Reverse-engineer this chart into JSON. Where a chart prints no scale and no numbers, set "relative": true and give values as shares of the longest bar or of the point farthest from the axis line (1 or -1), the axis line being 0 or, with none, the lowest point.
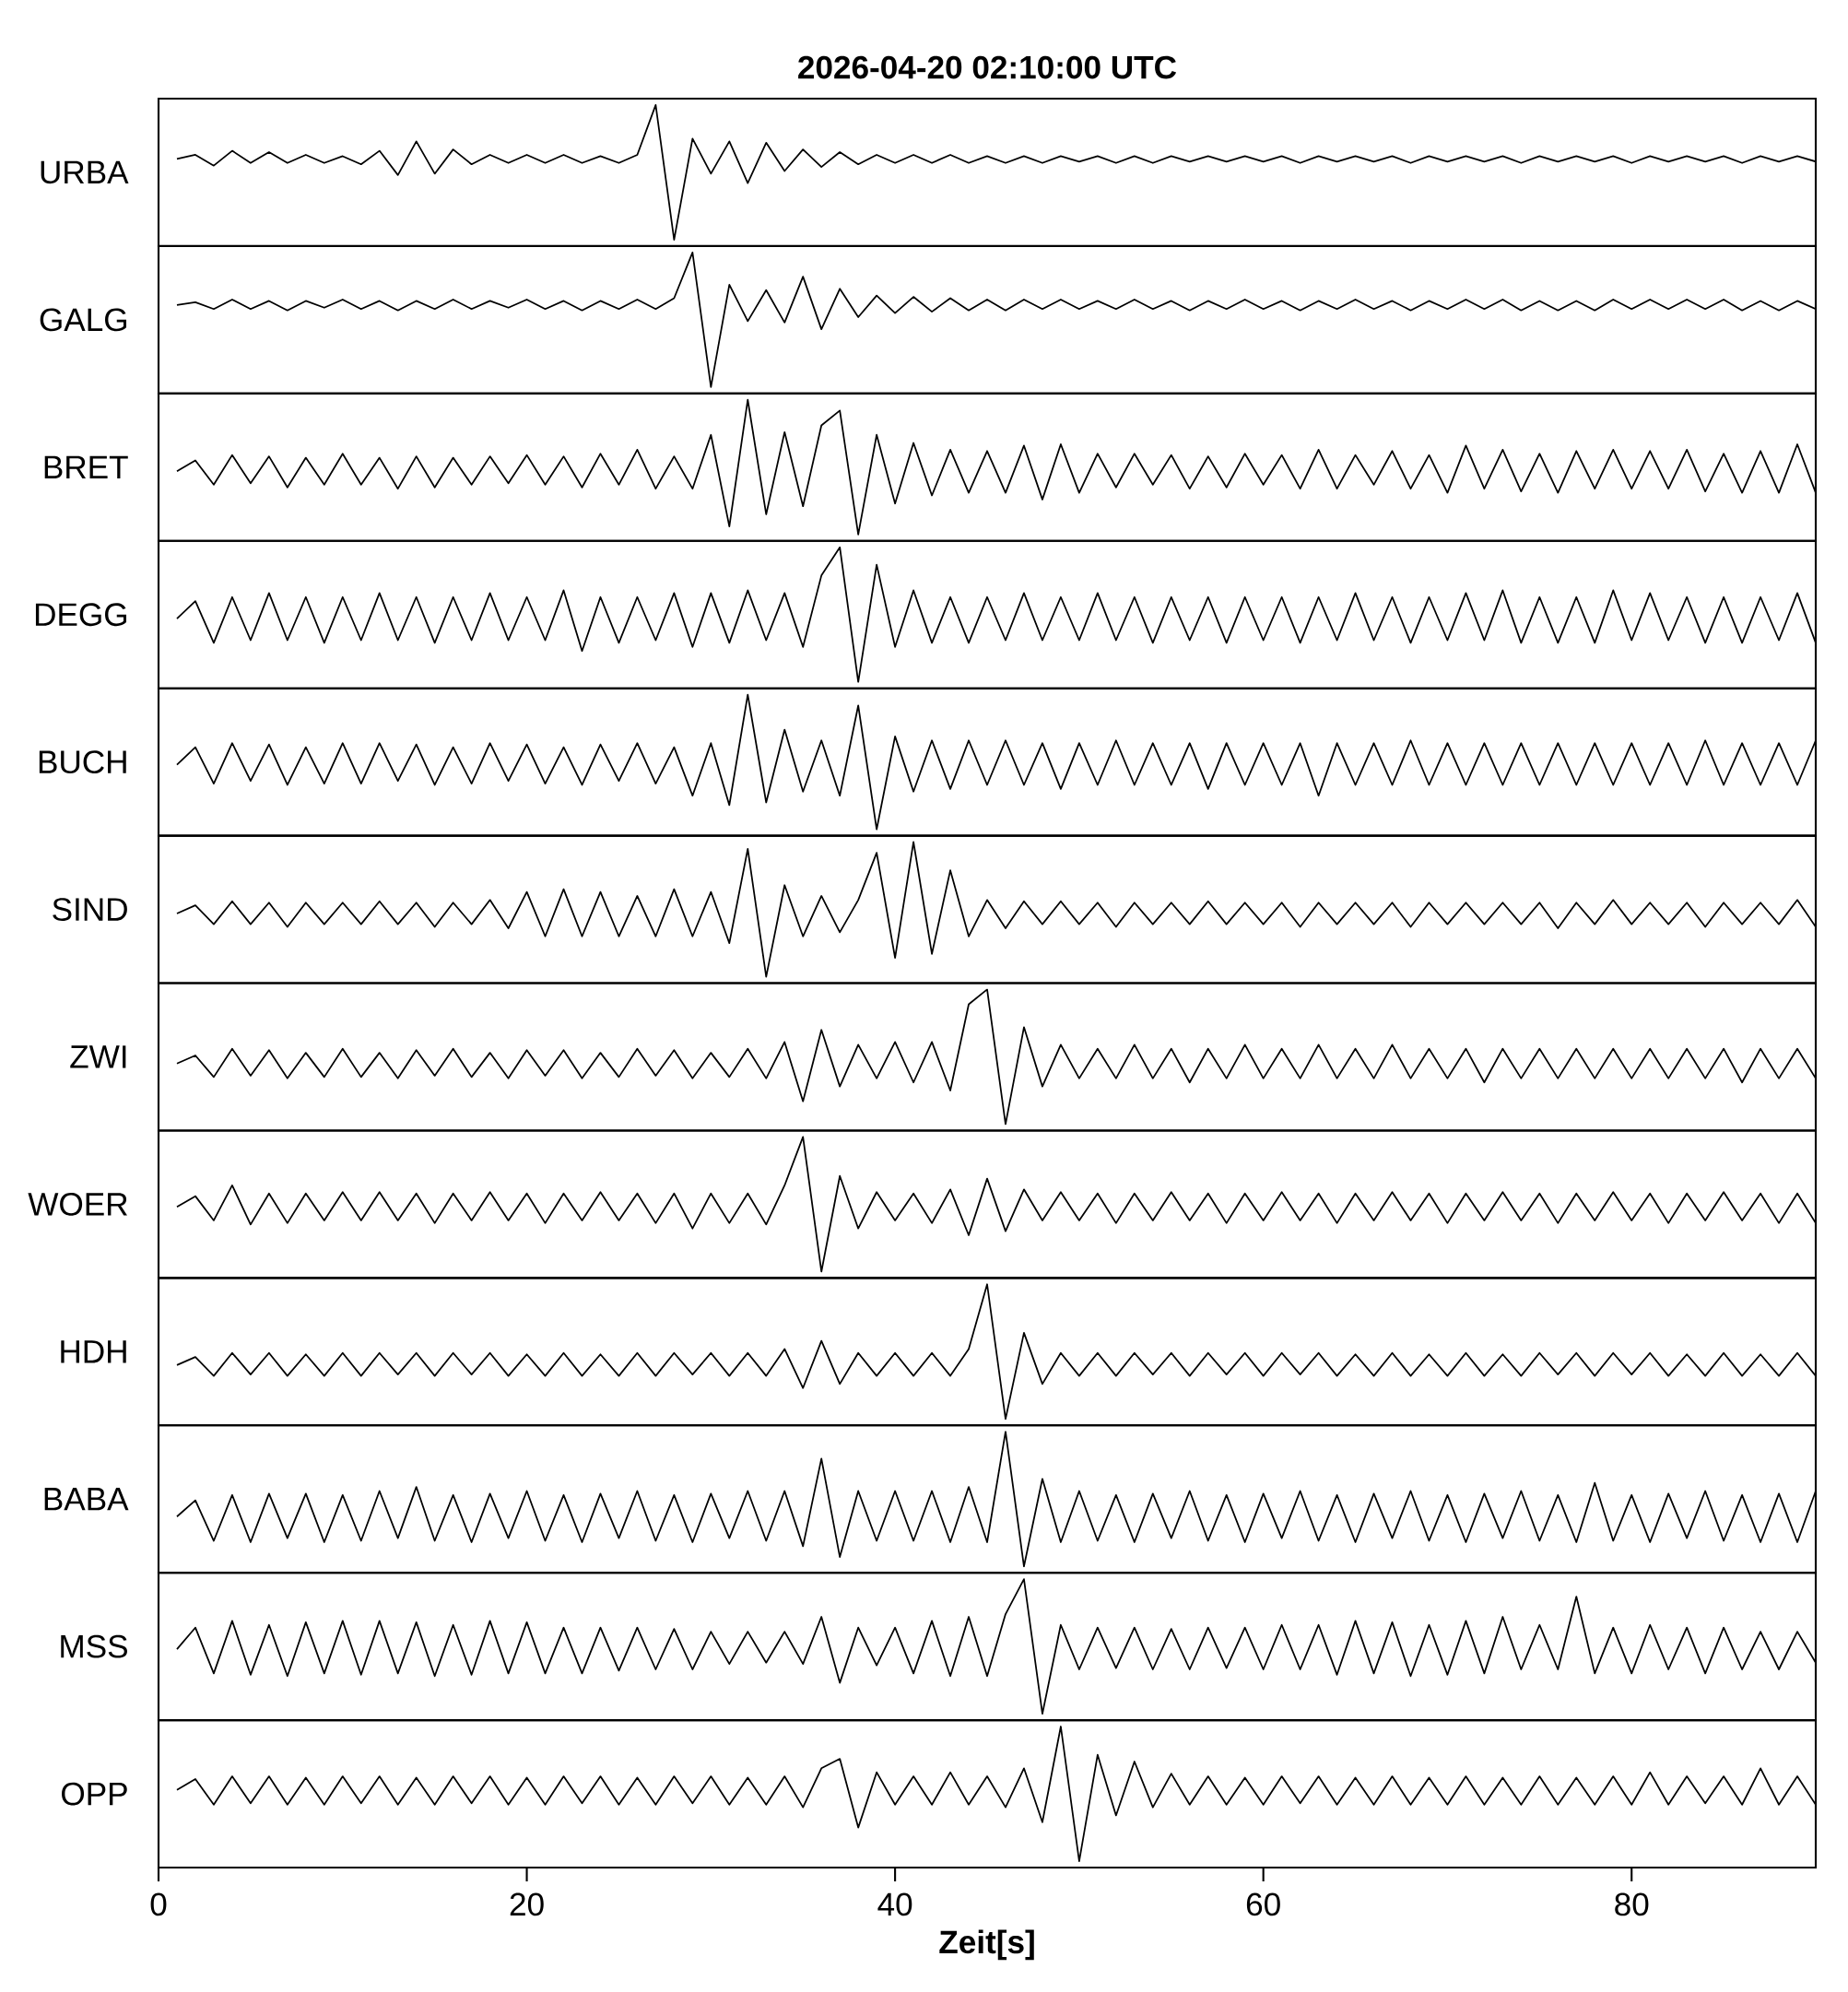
{
  "chart_data": [
    {
      "type": "line",
      "relative": true,
      "title": "2026-04-20  02:10:00 UTC",
      "ylabel": "URBA",
      "color": "#000000",
      "xlim": [
        0,
        90
      ],
      "tick_labels": false,
      "x": [
        1,
        2,
        3,
        4,
        5,
        6,
        7,
        8,
        9,
        10,
        11,
        12,
        13,
        14,
        15,
        16,
        17,
        18,
        19,
        20,
        21,
        22,
        23,
        24,
        25,
        26,
        27,
        28,
        29,
        30,
        31,
        32,
        33,
        34,
        35,
        36,
        37,
        38,
        39,
        40,
        41,
        42,
        43,
        44,
        45,
        46,
        47,
        48,
        49,
        50,
        51,
        52,
        53,
        54,
        55,
        56,
        57,
        58,
        59,
        60,
        61,
        62,
        63,
        64,
        65,
        66,
        67,
        68,
        69,
        70,
        71,
        72,
        73,
        74,
        75,
        76,
        77,
        78,
        79,
        80,
        81,
        82,
        83,
        84,
        85,
        86,
        87,
        88,
        89,
        90
      ],
      "values": [
        0.6,
        0.63,
        0.55,
        0.66,
        0.57,
        0.65,
        0.57,
        0.63,
        0.57,
        0.62,
        0.56,
        0.66,
        0.48,
        0.73,
        0.49,
        0.67,
        0.56,
        0.63,
        0.57,
        0.63,
        0.57,
        0.63,
        0.57,
        0.62,
        0.57,
        0.63,
        1,
        0,
        0.75,
        0.49,
        0.73,
        0.42,
        0.72,
        0.51,
        0.67,
        0.54,
        0.65,
        0.56,
        0.63,
        0.57,
        0.63,
        0.57,
        0.63,
        0.57,
        0.62,
        0.57,
        0.62,
        0.57,
        0.62,
        0.58,
        0.62,
        0.57,
        0.62,
        0.57,
        0.62,
        0.58,
        0.62,
        0.58,
        0.62,
        0.58,
        0.62,
        0.57,
        0.62,
        0.58,
        0.62,
        0.58,
        0.62,
        0.57,
        0.62,
        0.58,
        0.62,
        0.58,
        0.62,
        0.57,
        0.62,
        0.58,
        0.62,
        0.58,
        0.62,
        0.57,
        0.62,
        0.58,
        0.62,
        0.58,
        0.62,
        0.57,
        0.62,
        0.58,
        0.62,
        0.58
      ]
    },
    {
      "type": "line",
      "relative": true,
      "ylabel": "GALG",
      "color": "#000000",
      "xlim": [
        0,
        90
      ],
      "tick_labels": false,
      "x": [
        1,
        2,
        3,
        4,
        5,
        6,
        7,
        8,
        9,
        10,
        11,
        12,
        13,
        14,
        15,
        16,
        17,
        18,
        19,
        20,
        21,
        22,
        23,
        24,
        25,
        26,
        27,
        28,
        29,
        30,
        31,
        32,
        33,
        34,
        35,
        36,
        37,
        38,
        39,
        40,
        41,
        42,
        43,
        44,
        45,
        46,
        47,
        48,
        49,
        50,
        51,
        52,
        53,
        54,
        55,
        56,
        57,
        58,
        59,
        60,
        61,
        62,
        63,
        64,
        65,
        66,
        67,
        68,
        69,
        70,
        71,
        72,
        73,
        74,
        75,
        76,
        77,
        78,
        79,
        80,
        81,
        82,
        83,
        84,
        85,
        86,
        87,
        88,
        89,
        90
      ],
      "values": [
        0.61,
        0.63,
        0.58,
        0.65,
        0.58,
        0.64,
        0.57,
        0.64,
        0.59,
        0.65,
        0.58,
        0.64,
        0.57,
        0.64,
        0.58,
        0.65,
        0.58,
        0.64,
        0.59,
        0.65,
        0.58,
        0.64,
        0.57,
        0.64,
        0.58,
        0.65,
        0.58,
        0.66,
        1,
        0,
        0.76,
        0.49,
        0.72,
        0.48,
        0.82,
        0.43,
        0.73,
        0.52,
        0.68,
        0.55,
        0.67,
        0.56,
        0.66,
        0.57,
        0.65,
        0.57,
        0.65,
        0.58,
        0.65,
        0.58,
        0.64,
        0.58,
        0.65,
        0.58,
        0.64,
        0.57,
        0.64,
        0.58,
        0.65,
        0.58,
        0.64,
        0.57,
        0.64,
        0.58,
        0.65,
        0.58,
        0.64,
        0.57,
        0.64,
        0.58,
        0.65,
        0.58,
        0.65,
        0.57,
        0.64,
        0.57,
        0.64,
        0.57,
        0.65,
        0.58,
        0.65,
        0.58,
        0.65,
        0.58,
        0.65,
        0.57,
        0.64,
        0.57,
        0.64,
        0.58
      ]
    },
    {
      "type": "line",
      "relative": true,
      "ylabel": "BRET",
      "color": "#000000",
      "xlim": [
        0,
        90
      ],
      "tick_labels": false,
      "x": [
        1,
        2,
        3,
        4,
        5,
        6,
        7,
        8,
        9,
        10,
        11,
        12,
        13,
        14,
        15,
        16,
        17,
        18,
        19,
        20,
        21,
        22,
        23,
        24,
        25,
        26,
        27,
        28,
        29,
        30,
        31,
        32,
        33,
        34,
        35,
        36,
        37,
        38,
        39,
        40,
        41,
        42,
        43,
        44,
        45,
        46,
        47,
        48,
        49,
        50,
        51,
        52,
        53,
        54,
        55,
        56,
        57,
        58,
        59,
        60,
        61,
        62,
        63,
        64,
        65,
        66,
        67,
        68,
        69,
        70,
        71,
        72,
        73,
        74,
        75,
        76,
        77,
        78,
        79,
        80,
        81,
        82,
        83,
        84,
        85,
        86,
        87,
        88,
        89,
        90
      ],
      "values": [
        0.47,
        0.55,
        0.37,
        0.59,
        0.38,
        0.58,
        0.35,
        0.57,
        0.37,
        0.6,
        0.37,
        0.57,
        0.34,
        0.58,
        0.35,
        0.57,
        0.37,
        0.58,
        0.38,
        0.59,
        0.37,
        0.58,
        0.35,
        0.6,
        0.37,
        0.63,
        0.34,
        0.58,
        0.34,
        0.74,
        0.06,
        1,
        0.15,
        0.76,
        0.21,
        0.81,
        0.92,
        0,
        0.74,
        0.23,
        0.68,
        0.29,
        0.63,
        0.31,
        0.62,
        0.31,
        0.66,
        0.26,
        0.67,
        0.31,
        0.6,
        0.35,
        0.6,
        0.37,
        0.59,
        0.34,
        0.58,
        0.35,
        0.6,
        0.37,
        0.59,
        0.34,
        0.63,
        0.34,
        0.59,
        0.37,
        0.62,
        0.34,
        0.59,
        0.31,
        0.66,
        0.34,
        0.63,
        0.32,
        0.6,
        0.31,
        0.62,
        0.34,
        0.63,
        0.34,
        0.62,
        0.34,
        0.63,
        0.32,
        0.6,
        0.31,
        0.62,
        0.31,
        0.67,
        0.31
      ]
    },
    {
      "type": "line",
      "relative": true,
      "ylabel": "DEGG",
      "color": "#000000",
      "xlim": [
        0,
        90
      ],
      "tick_labels": false,
      "x": [
        1,
        2,
        3,
        4,
        5,
        6,
        7,
        8,
        9,
        10,
        11,
        12,
        13,
        14,
        15,
        16,
        17,
        18,
        19,
        20,
        21,
        22,
        23,
        24,
        25,
        26,
        27,
        28,
        29,
        30,
        31,
        32,
        33,
        34,
        35,
        36,
        37,
        38,
        39,
        40,
        41,
        42,
        43,
        44,
        45,
        46,
        47,
        48,
        49,
        50,
        51,
        52,
        53,
        54,
        55,
        56,
        57,
        58,
        59,
        60,
        61,
        62,
        63,
        64,
        65,
        66,
        67,
        68,
        69,
        70,
        71,
        72,
        73,
        74,
        75,
        76,
        77,
        78,
        79,
        80,
        81,
        82,
        83,
        84,
        85,
        86,
        87,
        88,
        89,
        90
      ],
      "values": [
        0.47,
        0.6,
        0.29,
        0.63,
        0.31,
        0.66,
        0.31,
        0.63,
        0.29,
        0.63,
        0.31,
        0.66,
        0.31,
        0.63,
        0.29,
        0.63,
        0.31,
        0.66,
        0.31,
        0.63,
        0.31,
        0.68,
        0.23,
        0.63,
        0.29,
        0.63,
        0.31,
        0.66,
        0.26,
        0.66,
        0.29,
        0.68,
        0.31,
        0.66,
        0.26,
        0.79,
        1,
        0,
        0.87,
        0.26,
        0.68,
        0.29,
        0.63,
        0.29,
        0.63,
        0.31,
        0.66,
        0.31,
        0.63,
        0.31,
        0.66,
        0.31,
        0.63,
        0.29,
        0.63,
        0.31,
        0.63,
        0.29,
        0.63,
        0.31,
        0.63,
        0.29,
        0.63,
        0.31,
        0.66,
        0.31,
        0.63,
        0.29,
        0.63,
        0.31,
        0.66,
        0.31,
        0.68,
        0.29,
        0.63,
        0.29,
        0.63,
        0.29,
        0.68,
        0.31,
        0.66,
        0.31,
        0.63,
        0.29,
        0.63,
        0.29,
        0.63,
        0.31,
        0.66,
        0.29
      ]
    },
    {
      "type": "line",
      "relative": true,
      "ylabel": "BUCH",
      "color": "#000000",
      "xlim": [
        0,
        90
      ],
      "tick_labels": false,
      "x": [
        1,
        2,
        3,
        4,
        5,
        6,
        7,
        8,
        9,
        10,
        11,
        12,
        13,
        14,
        15,
        16,
        17,
        18,
        19,
        20,
        21,
        22,
        23,
        24,
        25,
        26,
        27,
        28,
        29,
        30,
        31,
        32,
        33,
        34,
        35,
        36,
        37,
        38,
        39,
        40,
        41,
        42,
        43,
        44,
        45,
        46,
        47,
        48,
        49,
        50,
        51,
        52,
        53,
        54,
        55,
        56,
        57,
        58,
        59,
        60,
        61,
        62,
        63,
        64,
        65,
        66,
        67,
        68,
        69,
        70,
        71,
        72,
        73,
        74,
        75,
        76,
        77,
        78,
        79,
        80,
        81,
        82,
        83,
        84,
        85,
        86,
        87,
        88,
        89,
        90
      ],
      "values": [
        0.48,
        0.61,
        0.34,
        0.64,
        0.36,
        0.63,
        0.33,
        0.61,
        0.34,
        0.64,
        0.34,
        0.64,
        0.36,
        0.63,
        0.33,
        0.61,
        0.34,
        0.64,
        0.36,
        0.63,
        0.34,
        0.61,
        0.33,
        0.63,
        0.36,
        0.64,
        0.34,
        0.61,
        0.25,
        0.64,
        0.18,
        1,
        0.2,
        0.74,
        0.28,
        0.66,
        0.25,
        0.92,
        0,
        0.69,
        0.28,
        0.66,
        0.3,
        0.66,
        0.33,
        0.66,
        0.33,
        0.64,
        0.3,
        0.64,
        0.33,
        0.66,
        0.33,
        0.64,
        0.33,
        0.64,
        0.3,
        0.64,
        0.33,
        0.64,
        0.33,
        0.64,
        0.25,
        0.64,
        0.33,
        0.64,
        0.33,
        0.66,
        0.33,
        0.64,
        0.33,
        0.64,
        0.33,
        0.64,
        0.33,
        0.64,
        0.33,
        0.64,
        0.33,
        0.64,
        0.33,
        0.64,
        0.33,
        0.66,
        0.33,
        0.64,
        0.33,
        0.64,
        0.33,
        0.66
      ]
    },
    {
      "type": "line",
      "relative": true,
      "ylabel": "SIND",
      "color": "#000000",
      "xlim": [
        0,
        90
      ],
      "tick_labels": false,
      "x": [
        1,
        2,
        3,
        4,
        5,
        6,
        7,
        8,
        9,
        10,
        11,
        12,
        13,
        14,
        15,
        16,
        17,
        18,
        19,
        20,
        21,
        22,
        23,
        24,
        25,
        26,
        27,
        28,
        29,
        30,
        31,
        32,
        33,
        34,
        35,
        36,
        37,
        38,
        39,
        40,
        41,
        42,
        43,
        44,
        45,
        46,
        47,
        48,
        49,
        50,
        51,
        52,
        53,
        54,
        55,
        56,
        57,
        58,
        59,
        60,
        61,
        62,
        63,
        64,
        65,
        66,
        67,
        68,
        69,
        70,
        71,
        72,
        73,
        74,
        75,
        76,
        77,
        78,
        79,
        80,
        81,
        82,
        83,
        84,
        85,
        86,
        87,
        88,
        89,
        90
      ],
      "values": [
        0.47,
        0.53,
        0.39,
        0.56,
        0.39,
        0.55,
        0.37,
        0.55,
        0.39,
        0.55,
        0.39,
        0.56,
        0.39,
        0.55,
        0.37,
        0.55,
        0.39,
        0.57,
        0.36,
        0.63,
        0.3,
        0.65,
        0.3,
        0.63,
        0.3,
        0.6,
        0.3,
        0.65,
        0.3,
        0.63,
        0.25,
        0.95,
        0,
        0.68,
        0.3,
        0.6,
        0.33,
        0.57,
        0.92,
        0.14,
        1,
        0.17,
        0.79,
        0.3,
        0.57,
        0.36,
        0.56,
        0.39,
        0.56,
        0.39,
        0.55,
        0.37,
        0.55,
        0.39,
        0.55,
        0.39,
        0.56,
        0.39,
        0.55,
        0.39,
        0.55,
        0.37,
        0.55,
        0.39,
        0.55,
        0.39,
        0.55,
        0.37,
        0.55,
        0.39,
        0.55,
        0.39,
        0.55,
        0.39,
        0.55,
        0.36,
        0.55,
        0.39,
        0.57,
        0.39,
        0.55,
        0.39,
        0.55,
        0.37,
        0.55,
        0.39,
        0.55,
        0.39,
        0.57,
        0.37
      ]
    },
    {
      "type": "line",
      "relative": true,
      "ylabel": "ZWI",
      "color": "#000000",
      "xlim": [
        0,
        90
      ],
      "tick_labels": false,
      "x": [
        1,
        2,
        3,
        4,
        5,
        6,
        7,
        8,
        9,
        10,
        11,
        12,
        13,
        14,
        15,
        16,
        17,
        18,
        19,
        20,
        21,
        22,
        23,
        24,
        25,
        26,
        27,
        28,
        29,
        30,
        31,
        32,
        33,
        34,
        35,
        36,
        37,
        38,
        39,
        40,
        41,
        42,
        43,
        44,
        45,
        46,
        47,
        48,
        49,
        50,
        51,
        52,
        53,
        54,
        55,
        56,
        57,
        58,
        59,
        60,
        61,
        62,
        63,
        64,
        65,
        66,
        67,
        68,
        69,
        70,
        71,
        72,
        73,
        74,
        75,
        76,
        77,
        78,
        79,
        80,
        81,
        82,
        83,
        84,
        85,
        86,
        87,
        88,
        89,
        90
      ],
      "values": [
        0.45,
        0.51,
        0.35,
        0.56,
        0.36,
        0.55,
        0.34,
        0.53,
        0.35,
        0.56,
        0.35,
        0.53,
        0.34,
        0.55,
        0.36,
        0.56,
        0.35,
        0.53,
        0.34,
        0.55,
        0.36,
        0.55,
        0.34,
        0.53,
        0.35,
        0.56,
        0.36,
        0.55,
        0.34,
        0.53,
        0.35,
        0.56,
        0.34,
        0.61,
        0.17,
        0.7,
        0.28,
        0.59,
        0.34,
        0.61,
        0.31,
        0.61,
        0.25,
        0.89,
        1,
        0,
        0.72,
        0.28,
        0.59,
        0.34,
        0.56,
        0.34,
        0.59,
        0.34,
        0.56,
        0.31,
        0.56,
        0.34,
        0.59,
        0.34,
        0.56,
        0.34,
        0.59,
        0.34,
        0.56,
        0.34,
        0.59,
        0.34,
        0.56,
        0.34,
        0.56,
        0.31,
        0.56,
        0.34,
        0.56,
        0.34,
        0.56,
        0.34,
        0.56,
        0.34,
        0.56,
        0.34,
        0.56,
        0.34,
        0.56,
        0.31,
        0.56,
        0.34,
        0.56,
        0.34
      ]
    },
    {
      "type": "line",
      "relative": true,
      "ylabel": "WOER",
      "color": "#000000",
      "xlim": [
        0,
        90
      ],
      "tick_labels": false,
      "x": [
        1,
        2,
        3,
        4,
        5,
        6,
        7,
        8,
        9,
        10,
        11,
        12,
        13,
        14,
        15,
        16,
        17,
        18,
        19,
        20,
        21,
        22,
        23,
        24,
        25,
        26,
        27,
        28,
        29,
        30,
        31,
        32,
        33,
        34,
        35,
        36,
        37,
        38,
        39,
        40,
        41,
        42,
        43,
        44,
        45,
        46,
        47,
        48,
        49,
        50,
        51,
        52,
        53,
        54,
        55,
        56,
        57,
        58,
        59,
        60,
        61,
        62,
        63,
        64,
        65,
        66,
        67,
        68,
        69,
        70,
        71,
        72,
        73,
        74,
        75,
        76,
        77,
        78,
        79,
        80,
        81,
        82,
        83,
        84,
        85,
        86,
        87,
        88,
        89,
        90
      ],
      "values": [
        0.48,
        0.56,
        0.38,
        0.64,
        0.35,
        0.58,
        0.36,
        0.58,
        0.38,
        0.59,
        0.38,
        0.59,
        0.38,
        0.58,
        0.36,
        0.58,
        0.38,
        0.59,
        0.38,
        0.58,
        0.36,
        0.58,
        0.38,
        0.59,
        0.38,
        0.58,
        0.36,
        0.58,
        0.32,
        0.58,
        0.36,
        0.58,
        0.35,
        0.64,
        1,
        0,
        0.71,
        0.32,
        0.59,
        0.38,
        0.58,
        0.36,
        0.61,
        0.27,
        0.69,
        0.3,
        0.61,
        0.38,
        0.59,
        0.38,
        0.58,
        0.36,
        0.58,
        0.38,
        0.59,
        0.38,
        0.58,
        0.36,
        0.58,
        0.38,
        0.59,
        0.38,
        0.58,
        0.36,
        0.58,
        0.38,
        0.59,
        0.38,
        0.58,
        0.36,
        0.58,
        0.38,
        0.59,
        0.38,
        0.58,
        0.36,
        0.58,
        0.38,
        0.59,
        0.38,
        0.58,
        0.36,
        0.58,
        0.38,
        0.59,
        0.38,
        0.58,
        0.36,
        0.58,
        0.36
      ]
    },
    {
      "type": "line",
      "relative": true,
      "ylabel": "HDH",
      "color": "#000000",
      "xlim": [
        0,
        90
      ],
      "tick_labels": false,
      "x": [
        1,
        2,
        3,
        4,
        5,
        6,
        7,
        8,
        9,
        10,
        11,
        12,
        13,
        14,
        15,
        16,
        17,
        18,
        19,
        20,
        21,
        22,
        23,
        24,
        25,
        26,
        27,
        28,
        29,
        30,
        31,
        32,
        33,
        34,
        35,
        36,
        37,
        38,
        39,
        40,
        41,
        42,
        43,
        44,
        45,
        46,
        47,
        48,
        49,
        50,
        51,
        52,
        53,
        54,
        55,
        56,
        57,
        58,
        59,
        60,
        61,
        62,
        63,
        64,
        65,
        66,
        67,
        68,
        69,
        70,
        71,
        72,
        73,
        74,
        75,
        76,
        77,
        78,
        79,
        80,
        81,
        82,
        83,
        84,
        85,
        86,
        87,
        88,
        89,
        90
      ],
      "values": [
        0.4,
        0.46,
        0.32,
        0.49,
        0.33,
        0.49,
        0.32,
        0.48,
        0.32,
        0.49,
        0.32,
        0.49,
        0.33,
        0.49,
        0.32,
        0.49,
        0.33,
        0.49,
        0.32,
        0.48,
        0.32,
        0.49,
        0.32,
        0.48,
        0.32,
        0.49,
        0.32,
        0.49,
        0.33,
        0.49,
        0.32,
        0.49,
        0.32,
        0.52,
        0.23,
        0.58,
        0.26,
        0.49,
        0.32,
        0.49,
        0.32,
        0.49,
        0.32,
        0.52,
        1,
        0,
        0.64,
        0.26,
        0.49,
        0.32,
        0.49,
        0.32,
        0.49,
        0.33,
        0.49,
        0.32,
        0.49,
        0.33,
        0.49,
        0.32,
        0.49,
        0.33,
        0.49,
        0.32,
        0.48,
        0.32,
        0.49,
        0.32,
        0.48,
        0.32,
        0.49,
        0.32,
        0.48,
        0.32,
        0.49,
        0.33,
        0.49,
        0.32,
        0.49,
        0.33,
        0.49,
        0.32,
        0.48,
        0.32,
        0.49,
        0.32,
        0.48,
        0.32,
        0.49,
        0.32
      ]
    },
    {
      "type": "line",
      "relative": true,
      "ylabel": "BABA",
      "color": "#000000",
      "xlim": [
        0,
        90
      ],
      "tick_labels": false,
      "x": [
        1,
        2,
        3,
        4,
        5,
        6,
        7,
        8,
        9,
        10,
        11,
        12,
        13,
        14,
        15,
        16,
        17,
        18,
        19,
        20,
        21,
        22,
        23,
        24,
        25,
        26,
        27,
        28,
        29,
        30,
        31,
        32,
        33,
        34,
        35,
        36,
        37,
        38,
        39,
        40,
        41,
        42,
        43,
        44,
        45,
        46,
        47,
        48,
        49,
        50,
        51,
        52,
        53,
        54,
        55,
        56,
        57,
        58,
        59,
        60,
        61,
        62,
        63,
        64,
        65,
        66,
        67,
        68,
        69,
        70,
        71,
        72,
        73,
        74,
        75,
        76,
        77,
        78,
        79,
        80,
        81,
        82,
        83,
        84,
        85,
        86,
        87,
        88,
        89,
        90
      ],
      "values": [
        0.37,
        0.49,
        0.19,
        0.53,
        0.18,
        0.54,
        0.21,
        0.54,
        0.18,
        0.53,
        0.19,
        0.56,
        0.21,
        0.59,
        0.19,
        0.53,
        0.18,
        0.54,
        0.21,
        0.56,
        0.19,
        0.53,
        0.18,
        0.54,
        0.21,
        0.56,
        0.19,
        0.53,
        0.18,
        0.54,
        0.21,
        0.56,
        0.19,
        0.56,
        0.15,
        0.8,
        0.07,
        0.56,
        0.19,
        0.56,
        0.19,
        0.56,
        0.18,
        0.59,
        0.18,
        1,
        0,
        0.65,
        0.18,
        0.56,
        0.19,
        0.53,
        0.18,
        0.54,
        0.21,
        0.56,
        0.19,
        0.53,
        0.18,
        0.54,
        0.21,
        0.56,
        0.19,
        0.53,
        0.18,
        0.54,
        0.21,
        0.56,
        0.19,
        0.53,
        0.18,
        0.54,
        0.21,
        0.56,
        0.19,
        0.53,
        0.18,
        0.62,
        0.19,
        0.53,
        0.18,
        0.54,
        0.21,
        0.56,
        0.19,
        0.53,
        0.18,
        0.54,
        0.18,
        0.56
      ]
    },
    {
      "type": "line",
      "relative": true,
      "ylabel": "MSS",
      "color": "#000000",
      "xlim": [
        0,
        90
      ],
      "tick_labels": false,
      "x": [
        1,
        2,
        3,
        4,
        5,
        6,
        7,
        8,
        9,
        10,
        11,
        12,
        13,
        14,
        15,
        16,
        17,
        18,
        19,
        20,
        21,
        22,
        23,
        24,
        25,
        26,
        27,
        28,
        29,
        30,
        31,
        32,
        33,
        34,
        35,
        36,
        37,
        38,
        39,
        40,
        41,
        42,
        43,
        44,
        45,
        46,
        47,
        48,
        49,
        50,
        51,
        52,
        53,
        54,
        55,
        56,
        57,
        58,
        59,
        60,
        61,
        62,
        63,
        64,
        65,
        66,
        67,
        68,
        69,
        70,
        71,
        72,
        73,
        74,
        75,
        76,
        77,
        78,
        79,
        80,
        81,
        82,
        83,
        84,
        85,
        86,
        87,
        88,
        89,
        90
      ],
      "values": [
        0.48,
        0.64,
        0.3,
        0.69,
        0.29,
        0.66,
        0.28,
        0.68,
        0.3,
        0.69,
        0.29,
        0.69,
        0.3,
        0.68,
        0.28,
        0.66,
        0.29,
        0.69,
        0.3,
        0.68,
        0.3,
        0.64,
        0.3,
        0.64,
        0.32,
        0.64,
        0.33,
        0.63,
        0.33,
        0.61,
        0.37,
        0.61,
        0.38,
        0.61,
        0.37,
        0.72,
        0.23,
        0.64,
        0.36,
        0.64,
        0.3,
        0.69,
        0.28,
        0.72,
        0.28,
        0.74,
        1,
        0,
        0.66,
        0.33,
        0.64,
        0.34,
        0.64,
        0.33,
        0.63,
        0.33,
        0.64,
        0.34,
        0.64,
        0.33,
        0.66,
        0.33,
        0.66,
        0.29,
        0.69,
        0.3,
        0.68,
        0.28,
        0.66,
        0.29,
        0.69,
        0.3,
        0.72,
        0.33,
        0.66,
        0.33,
        0.87,
        0.3,
        0.64,
        0.3,
        0.66,
        0.33,
        0.64,
        0.3,
        0.64,
        0.33,
        0.61,
        0.33,
        0.61,
        0.38
      ]
    },
    {
      "type": "line",
      "relative": true,
      "ylabel": "OPP",
      "xlabel": "Zeit[s]",
      "color": "#000000",
      "xlim": [
        0,
        90
      ],
      "xticks": [
        0,
        20,
        40,
        60,
        80
      ],
      "tick_labels": "x",
      "x": [
        1,
        2,
        3,
        4,
        5,
        6,
        7,
        8,
        9,
        10,
        11,
        12,
        13,
        14,
        15,
        16,
        17,
        18,
        19,
        20,
        21,
        22,
        23,
        24,
        25,
        26,
        27,
        28,
        29,
        30,
        31,
        32,
        33,
        34,
        35,
        36,
        37,
        38,
        39,
        40,
        41,
        42,
        43,
        44,
        45,
        46,
        47,
        48,
        49,
        50,
        51,
        52,
        53,
        54,
        55,
        56,
        57,
        58,
        59,
        60,
        61,
        62,
        63,
        64,
        65,
        66,
        67,
        68,
        69,
        70,
        71,
        72,
        73,
        74,
        75,
        76,
        77,
        78,
        79,
        80,
        81,
        82,
        83,
        84,
        85,
        86,
        87,
        88,
        89,
        90
      ],
      "values": [
        0.53,
        0.61,
        0.42,
        0.63,
        0.43,
        0.63,
        0.42,
        0.62,
        0.42,
        0.63,
        0.43,
        0.63,
        0.42,
        0.62,
        0.42,
        0.63,
        0.43,
        0.63,
        0.42,
        0.62,
        0.42,
        0.63,
        0.43,
        0.63,
        0.42,
        0.62,
        0.42,
        0.63,
        0.43,
        0.63,
        0.42,
        0.62,
        0.42,
        0.63,
        0.4,
        0.69,
        0.76,
        0.25,
        0.66,
        0.42,
        0.63,
        0.42,
        0.66,
        0.42,
        0.63,
        0.4,
        0.69,
        0.29,
        1,
        0,
        0.79,
        0.34,
        0.74,
        0.4,
        0.65,
        0.42,
        0.63,
        0.42,
        0.62,
        0.42,
        0.63,
        0.43,
        0.63,
        0.42,
        0.62,
        0.42,
        0.63,
        0.42,
        0.62,
        0.42,
        0.63,
        0.42,
        0.62,
        0.42,
        0.63,
        0.42,
        0.62,
        0.42,
        0.63,
        0.42,
        0.66,
        0.42,
        0.63,
        0.43,
        0.63,
        0.42,
        0.69,
        0.42,
        0.63,
        0.42
      ]
    }
  ]
}
